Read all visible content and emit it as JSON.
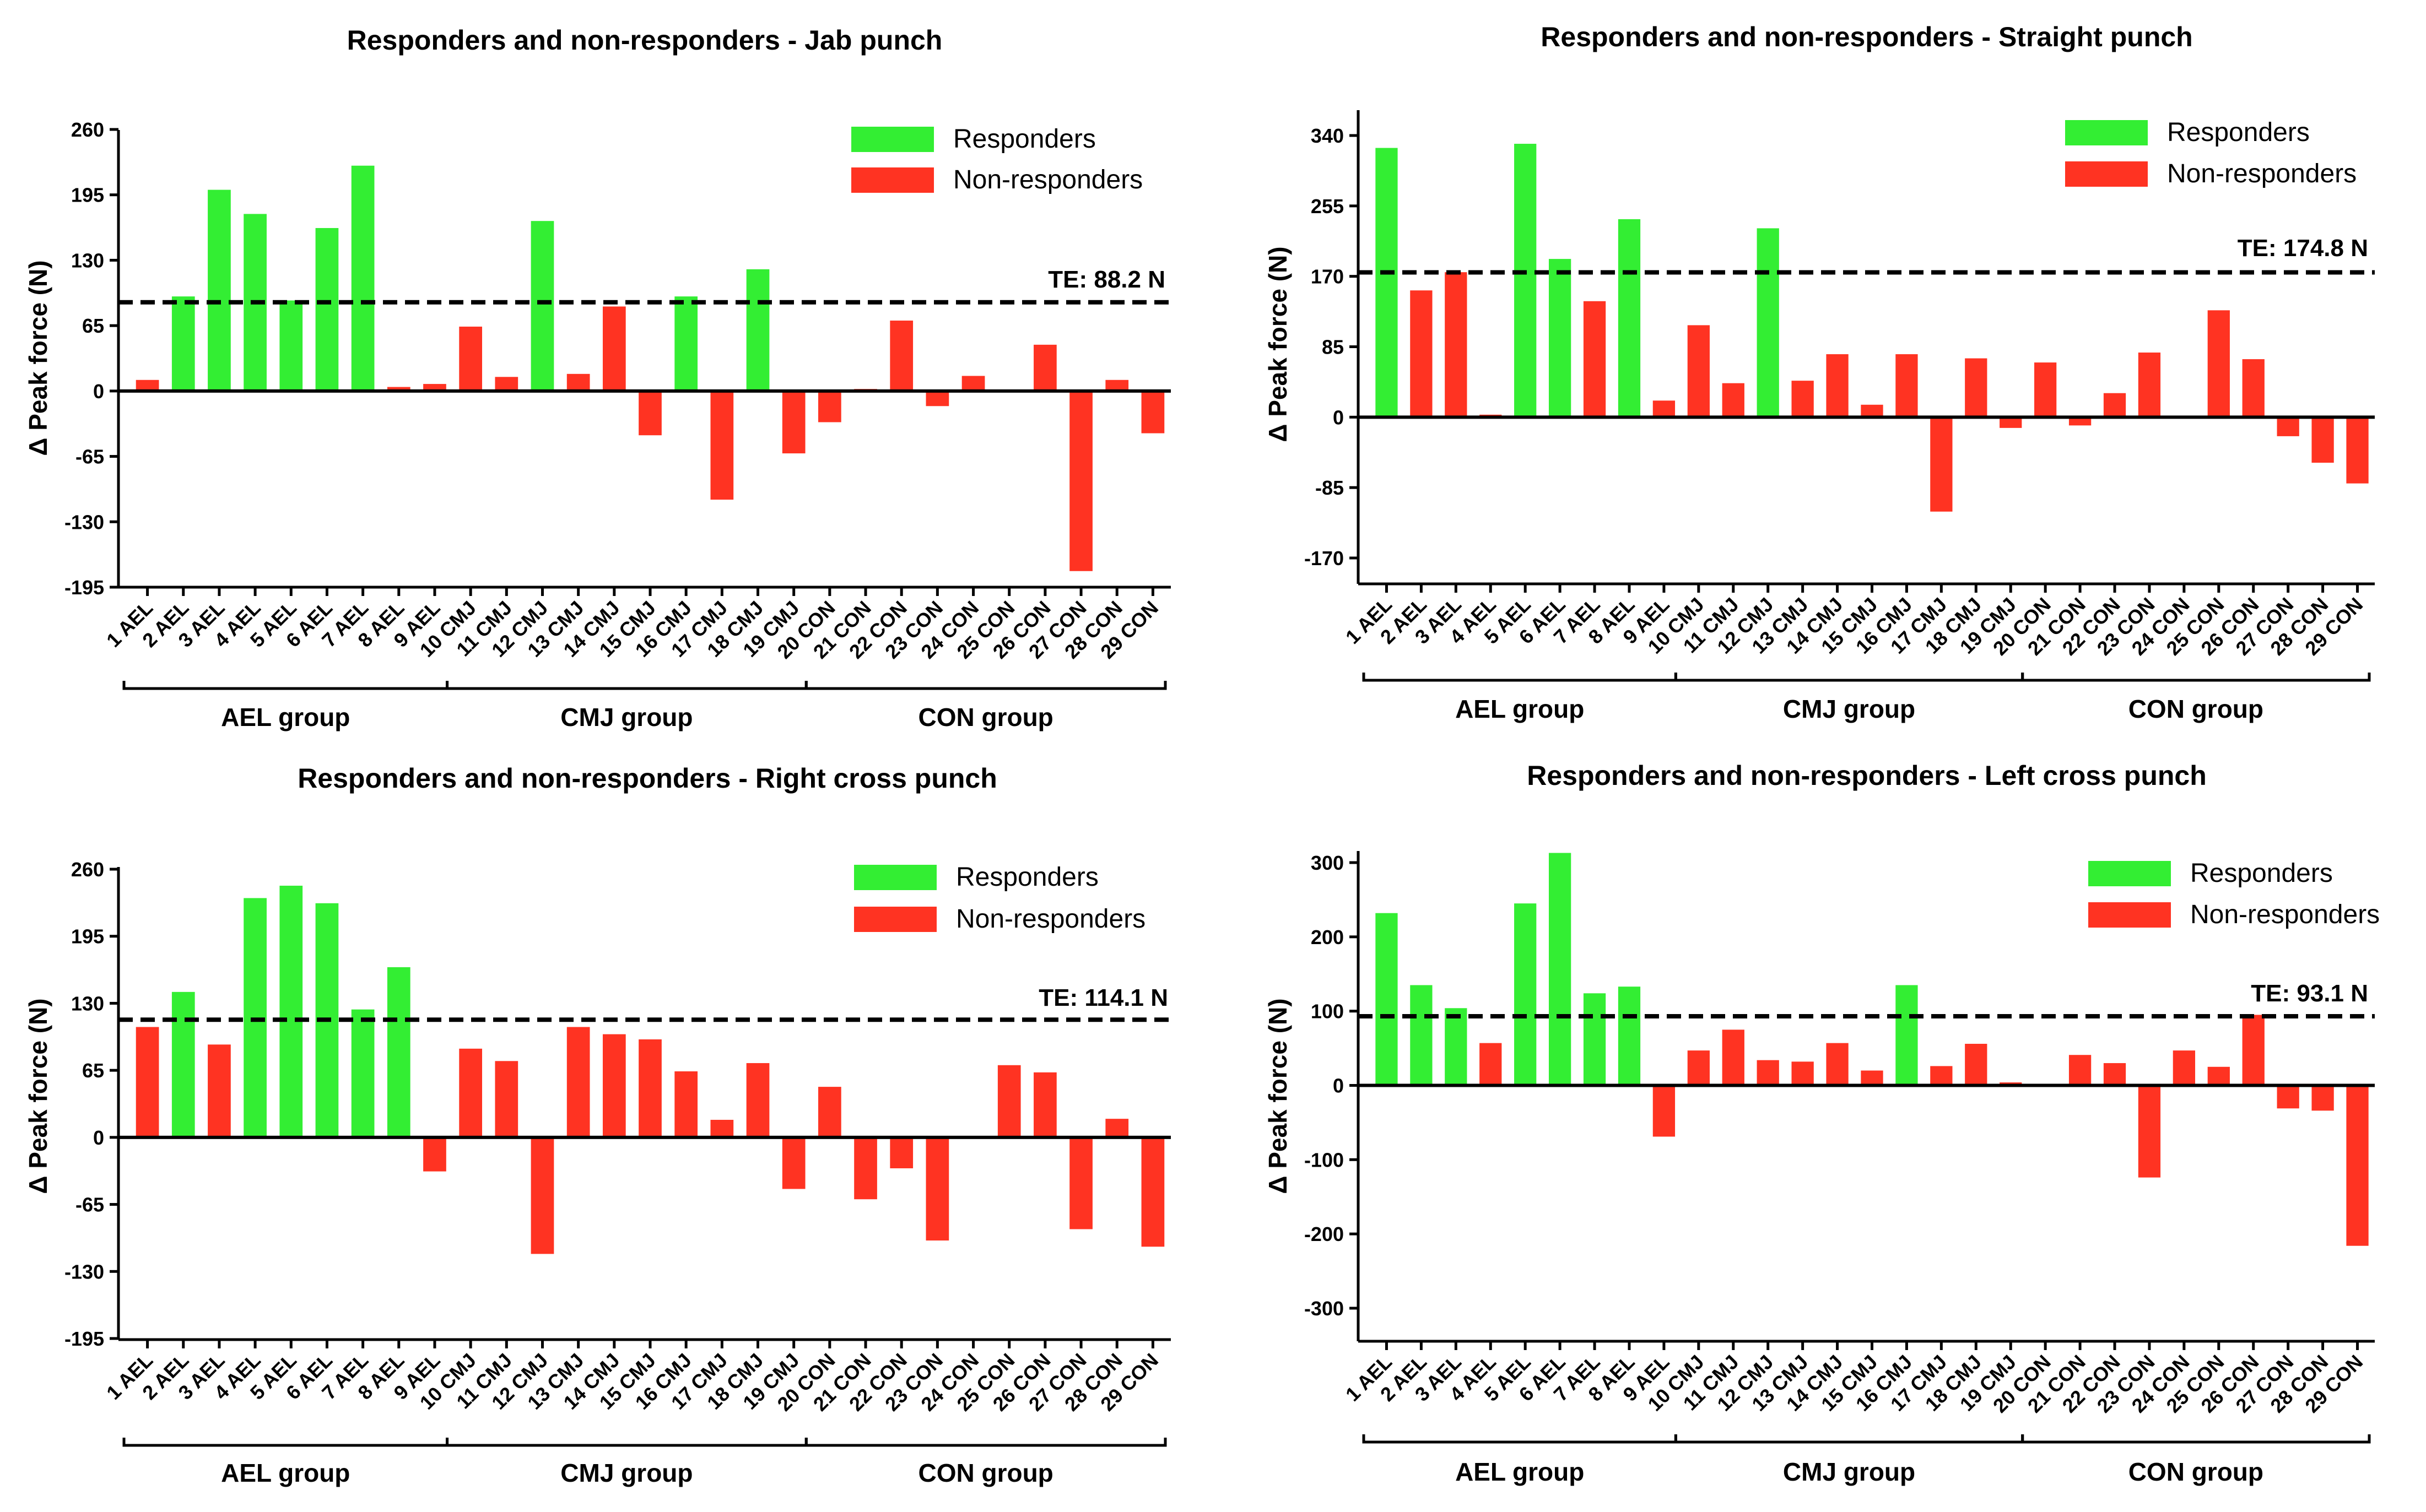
{
  "colors": {
    "responder": "#33ee33",
    "non_responder": "#ff3322",
    "axis": "#000000"
  },
  "legend": {
    "responders": "Responders",
    "non_responders": "Non-responders"
  },
  "groups": [
    "AEL group",
    "CMJ group",
    "CON group"
  ],
  "chart_data": [
    {
      "type": "bar",
      "title": "Responders and non-responders - Jab punch",
      "ylabel": "Δ Peak force (N)",
      "yticks": [
        "260",
        "195",
        "130",
        "65",
        "0",
        "-65",
        "-130",
        "-195"
      ],
      "ylim": [
        -195,
        260
      ],
      "te_label": "TE: 88.2 N",
      "te_value": 88.2,
      "categories": [
        "1 AEL",
        "2 AEL",
        "3 AEL",
        "4 AEL",
        "5 AEL",
        "6 AEL",
        "7 AEL",
        "8 AEL",
        "9 AEL",
        "10 CMJ",
        "11 CMJ",
        "12 CMJ",
        "13 CMJ",
        "14 CMJ",
        "15 CMJ",
        "16 CMJ",
        "17 CMJ",
        "18 CMJ",
        "19 CMJ",
        "20 CON",
        "21 CON",
        "22 CON",
        "23 CON",
        "24 CON",
        "25 CON",
        "26 CON",
        "27 CON",
        "28 CON",
        "29 CON"
      ],
      "values": [
        11,
        94,
        200,
        176,
        90,
        162,
        224,
        4,
        7,
        64,
        14,
        169,
        17,
        84,
        -44,
        94,
        -108,
        121,
        -62,
        -31,
        2,
        70,
        -15,
        15,
        0,
        46,
        -179,
        11,
        -42
      ],
      "responder": [
        0,
        1,
        1,
        1,
        1,
        1,
        1,
        0,
        0,
        0,
        0,
        1,
        0,
        0,
        0,
        1,
        0,
        1,
        0,
        0,
        0,
        0,
        0,
        0,
        0,
        0,
        0,
        0,
        0
      ]
    },
    {
      "type": "bar",
      "title": "Responders and non-responders - Straight punch",
      "ylabel": "Δ Peak force (N)",
      "yticks": [
        "340",
        "255",
        "170",
        "85",
        "0",
        "-85",
        "-170"
      ],
      "ylim": [
        -170,
        340
      ],
      "te_label": "TE: 174.8 N",
      "te_value": 174.8,
      "categories": [
        "1 AEL",
        "2 AEL",
        "3 AEL",
        "4 AEL",
        "5 AEL",
        "6 AEL",
        "7 AEL",
        "8 AEL",
        "9 AEL",
        "10 CMJ",
        "11 CMJ",
        "12 CMJ",
        "13 CMJ",
        "14 CMJ",
        "15 CMJ",
        "16 CMJ",
        "17 CMJ",
        "18 CMJ",
        "19 CMJ",
        "20 CON",
        "21 CON",
        "22 CON",
        "23 CON",
        "24 CON",
        "25 CON",
        "26 CON",
        "27 CON",
        "28 CON",
        "29 CON"
      ],
      "values": [
        325,
        153,
        175,
        3,
        330,
        191,
        140,
        239,
        20,
        111,
        41,
        228,
        44,
        76,
        15,
        76,
        -114,
        71,
        -13,
        66,
        -10,
        29,
        78,
        0,
        129,
        70,
        -23,
        -55,
        -80
      ],
      "responder": [
        1,
        0,
        0,
        0,
        1,
        1,
        0,
        1,
        0,
        0,
        0,
        1,
        0,
        0,
        0,
        0,
        0,
        0,
        0,
        0,
        0,
        0,
        0,
        0,
        0,
        0,
        0,
        0,
        0
      ]
    },
    {
      "type": "bar",
      "title": "Responders and non-responders - Right cross punch",
      "ylabel": "Δ Peak force (N)",
      "yticks": [
        "260",
        "195",
        "130",
        "65",
        "0",
        "-65",
        "-130",
        "-195"
      ],
      "ylim": [
        -195,
        260
      ],
      "te_label": "TE: 114.1 N",
      "te_value": 114.1,
      "categories": [
        "1 AEL",
        "2 AEL",
        "3 AEL",
        "4 AEL",
        "5 AEL",
        "6 AEL",
        "7 AEL",
        "8 AEL",
        "9 AEL",
        "10 CMJ",
        "11 CMJ",
        "12 CMJ",
        "13 CMJ",
        "14 CMJ",
        "15 CMJ",
        "16 CMJ",
        "17 CMJ",
        "18 CMJ",
        "19 CMJ",
        "20 CON",
        "21 CON",
        "22 CON",
        "23 CON",
        "24 CON",
        "25 CON",
        "26 CON",
        "27 CON",
        "28 CON",
        "29 CON"
      ],
      "values": [
        107,
        141,
        90,
        232,
        244,
        227,
        124,
        165,
        -33,
        86,
        74,
        -113,
        107,
        100,
        95,
        64,
        17,
        72,
        -50,
        49,
        -60,
        -30,
        -100,
        0,
        70,
        63,
        -89,
        18,
        -106
      ],
      "responder": [
        0,
        1,
        0,
        1,
        1,
        1,
        1,
        1,
        0,
        0,
        0,
        0,
        0,
        0,
        0,
        0,
        0,
        0,
        0,
        0,
        0,
        0,
        0,
        0,
        0,
        0,
        0,
        0,
        0
      ]
    },
    {
      "type": "bar",
      "title": "Responders and non-responders - Left cross punch",
      "ylabel": "Δ Peak force (N)",
      "yticks": [
        "300",
        "200",
        "100",
        "0",
        "-100",
        "-200",
        "-300"
      ],
      "ylim": [
        -350,
        330
      ],
      "te_label": "TE: 93.1 N",
      "te_value": 93.1,
      "categories": [
        "1 AEL",
        "2 AEL",
        "3 AEL",
        "4 AEL",
        "5 AEL",
        "6 AEL",
        "7 AEL",
        "8 AEL",
        "9 AEL",
        "10 CMJ",
        "11 CMJ",
        "12 CMJ",
        "13 CMJ",
        "14 CMJ",
        "15 CMJ",
        "16 CMJ",
        "17 CMJ",
        "18 CMJ",
        "19 CMJ",
        "20 CON",
        "21 CON",
        "22 CON",
        "23 CON",
        "24 CON",
        "25 CON",
        "26 CON",
        "27 CON",
        "28 CON",
        "29 CON"
      ],
      "values": [
        232,
        135,
        104,
        57,
        245,
        313,
        124,
        133,
        -69,
        47,
        75,
        34,
        32,
        57,
        20,
        135,
        26,
        56,
        4,
        0,
        41,
        30,
        -124,
        47,
        25,
        95,
        -31,
        -34,
        -216
      ],
      "responder": [
        1,
        1,
        1,
        0,
        1,
        1,
        1,
        1,
        0,
        0,
        0,
        0,
        0,
        0,
        0,
        1,
        0,
        0,
        0,
        0,
        0,
        0,
        0,
        0,
        0,
        0,
        0,
        0,
        0
      ]
    }
  ]
}
